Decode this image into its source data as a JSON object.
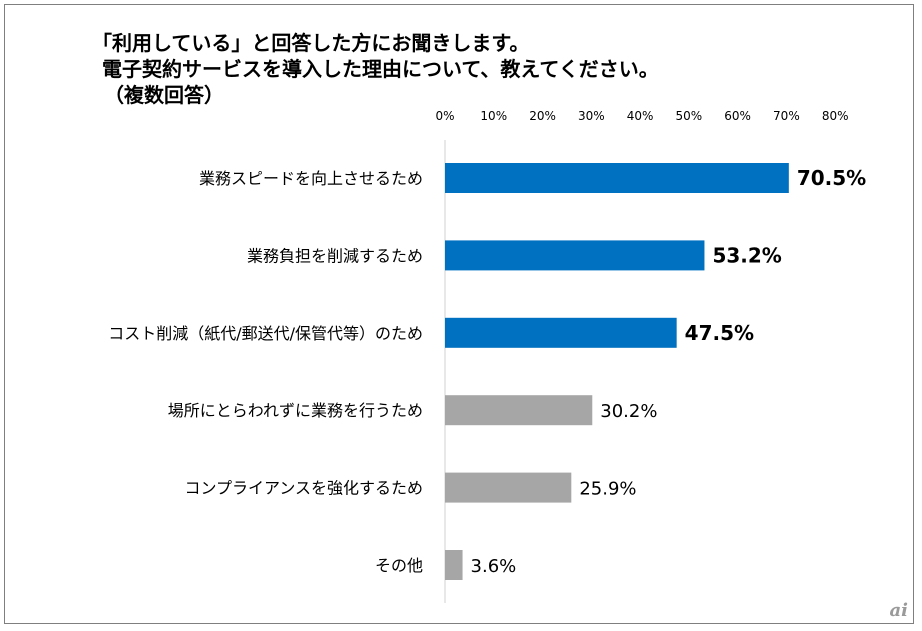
{
  "header": {
    "title_line1": "「利用している」と回答した方にお聞きします。",
    "title_line2": "電子契約サービスを導入した理由について、教えてください。",
    "title_line3": "（複数回答）"
  },
  "watermark": "ai",
  "colors": {
    "highlight": "#0070c0",
    "normal": "#a6a6a6"
  },
  "chart_data": {
    "type": "bar",
    "orientation": "horizontal",
    "title": "「利用している」と回答した方にお聞きします。 電子契約サービスを導入した理由について、教えてください。 （複数回答）",
    "xlim": [
      0,
      80
    ],
    "ticks": [
      {
        "value": 0,
        "label": "0%"
      },
      {
        "value": 10,
        "label": "10%"
      },
      {
        "value": 20,
        "label": "20%"
      },
      {
        "value": 30,
        "label": "30%"
      },
      {
        "value": 40,
        "label": "40%"
      },
      {
        "value": 50,
        "label": "50%"
      },
      {
        "value": 60,
        "label": "60%"
      },
      {
        "value": 70,
        "label": "70%"
      },
      {
        "value": 80,
        "label": "80%"
      }
    ],
    "bars": [
      {
        "category": "業務スピードを向上させるため",
        "value": 70.5,
        "label": "70.5%",
        "highlight": true
      },
      {
        "category": "業務負担を削減するため",
        "value": 53.2,
        "label": "53.2%",
        "highlight": true
      },
      {
        "category": "コスト削減（紙代/郵送代/保管代等）のため",
        "value": 47.5,
        "label": "47.5%",
        "highlight": true
      },
      {
        "category": "場所にとらわれずに業務を行うため",
        "value": 30.2,
        "label": "30.2%",
        "highlight": false
      },
      {
        "category": "コンプライアンスを強化するため",
        "value": 25.9,
        "label": "25.9%",
        "highlight": false
      },
      {
        "category": "その他",
        "value": 3.6,
        "label": "3.6%",
        "highlight": false
      }
    ]
  }
}
